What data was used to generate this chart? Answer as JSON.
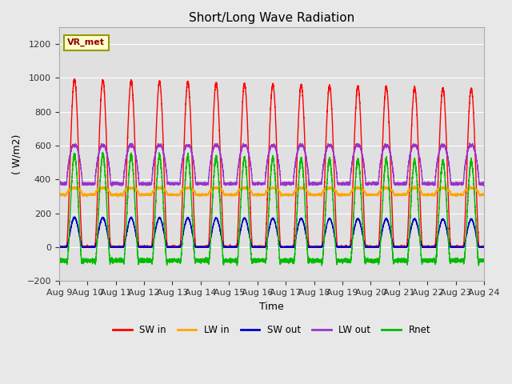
{
  "title": "Short/Long Wave Radiation",
  "xlabel": "Time",
  "ylabel": "( W/m2)",
  "ylim": [
    -200,
    1300
  ],
  "yticks": [
    -200,
    0,
    200,
    400,
    600,
    800,
    1000,
    1200
  ],
  "x_tick_labels": [
    "Aug 9",
    "Aug 10",
    "Aug 11",
    "Aug 12",
    "Aug 13",
    "Aug 14",
    "Aug 15",
    "Aug 16",
    "Aug 17",
    "Aug 18",
    "Aug 19",
    "Aug 20",
    "Aug 21",
    "Aug 22",
    "Aug 23",
    "Aug 24"
  ],
  "annotation_text": "VR_met",
  "colors": {
    "SW in": "#ff0000",
    "LW in": "#ffa500",
    "SW out": "#0000cc",
    "LW out": "#9933cc",
    "Rnet": "#00bb00"
  },
  "fig_bg_color": "#e8e8e8",
  "plot_bg_color": "#e0e0e0",
  "n_days": 15,
  "pts_per_day": 480,
  "SW_in_peak": 990,
  "SW_out_peak": 175,
  "LW_in_base": 310,
  "LW_in_day_extra": 40,
  "LW_out_base": 375,
  "LW_out_peak": 610,
  "Rnet_night": -80,
  "Rnet_day_peak": 520
}
